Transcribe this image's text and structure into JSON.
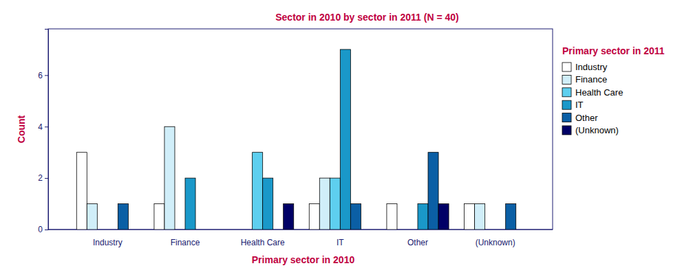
{
  "chart_data": {
    "type": "bar",
    "title": "Sector in 2010 by sector in 2011 (N = 40)",
    "x_label": "Primary sector in 2010",
    "y_label": "Count",
    "legend_title": "Primary sector in 2011",
    "legend": "right",
    "categories": [
      "Industry",
      "Finance",
      "Health Care",
      "IT",
      "Other",
      "(Unknown)"
    ],
    "series": [
      {
        "name": "Industry",
        "color": "#ffffff",
        "values": [
          3,
          1,
          0,
          1,
          1,
          1
        ]
      },
      {
        "name": "Finance",
        "color": "#d0eef9",
        "values": [
          1,
          4,
          0,
          2,
          0,
          1
        ]
      },
      {
        "name": "Health Care",
        "color": "#5ecfef",
        "values": [
          0,
          0,
          3,
          2,
          0,
          0
        ]
      },
      {
        "name": "IT",
        "color": "#1a98c9",
        "values": [
          0,
          2,
          2,
          7,
          1,
          0
        ]
      },
      {
        "name": "Other",
        "color": "#0b5fa5",
        "values": [
          1,
          0,
          0,
          1,
          3,
          1
        ]
      },
      {
        "name": "(Unknown)",
        "color": "#000066",
        "values": [
          0,
          0,
          1,
          0,
          1,
          0
        ]
      }
    ],
    "ylim": [
      0,
      7.8
    ],
    "yticks": [
      0,
      2,
      4,
      6
    ]
  }
}
